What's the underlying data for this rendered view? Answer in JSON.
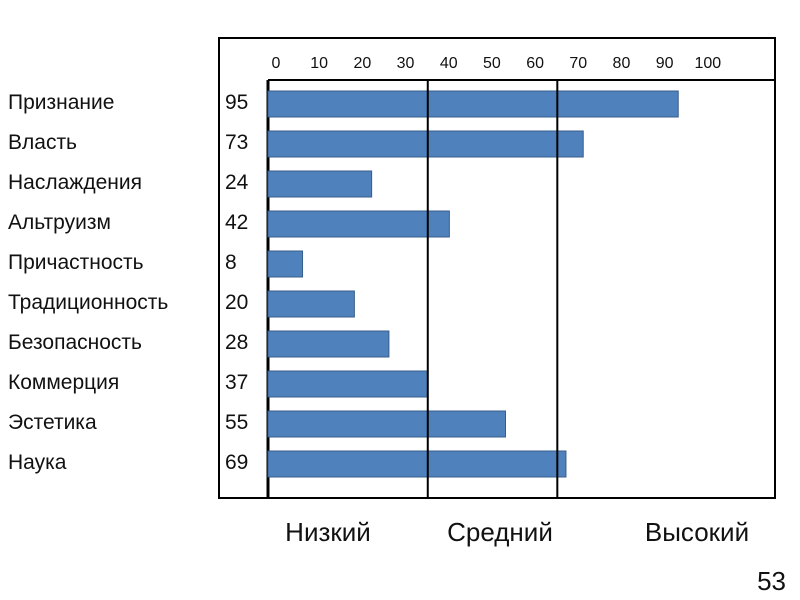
{
  "chart_data": {
    "type": "bar",
    "orientation": "horizontal",
    "categories": [
      "Признание",
      "Власть",
      "Наслаждения",
      "Альтруизм",
      "Причастность",
      "Традиционность",
      "Безопасность",
      "Коммерция",
      "Эстетика",
      "Наука"
    ],
    "values": [
      95,
      73,
      24,
      42,
      8,
      20,
      28,
      37,
      55,
      69
    ],
    "value_labels": [
      "95",
      "73",
      "24",
      "42",
      "8",
      "20",
      "28",
      "37",
      "55",
      "69"
    ],
    "xlim": [
      0,
      110
    ],
    "xticks": [
      "0",
      "10",
      "20",
      "30",
      "40",
      "50",
      "60",
      "70",
      "80",
      "90",
      "100"
    ],
    "thresholds": [
      37,
      67
    ],
    "zones": [
      "Низкий",
      "Средний",
      "Высокий"
    ],
    "bar_color": "#4f81bd",
    "bar_edge_color": "#385d8a",
    "grid": false
  },
  "page_number": "53"
}
